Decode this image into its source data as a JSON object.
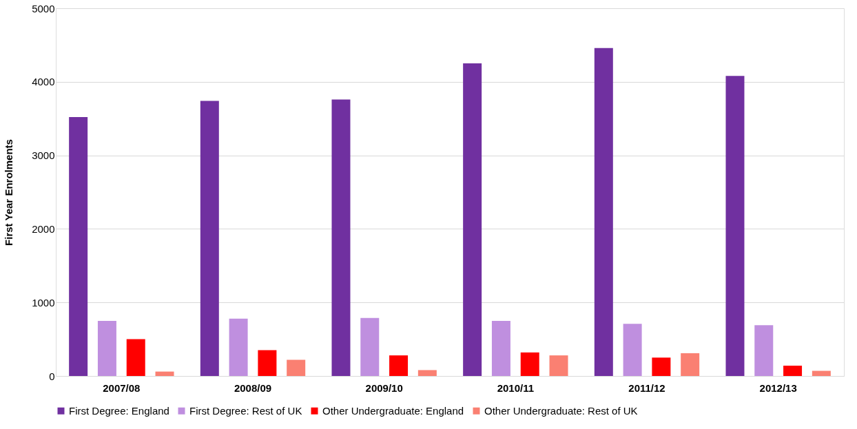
{
  "chart_data": {
    "type": "bar",
    "ylabel": "First Year Enrolments",
    "categories": [
      "2007/08",
      "2008/09",
      "2009/10",
      "2010/11",
      "2011/12",
      "2012/13"
    ],
    "series": [
      {
        "name": "First Degree: England",
        "color": "#7030a0",
        "values": [
          3520,
          3740,
          3760,
          4250,
          4460,
          4080
        ]
      },
      {
        "name": "First Degree: Rest of UK",
        "color": "#bf8fdf",
        "values": [
          750,
          780,
          790,
          750,
          710,
          690
        ]
      },
      {
        "name": "Other Undergraduate: England",
        "color": "#ff0000",
        "values": [
          500,
          350,
          280,
          320,
          250,
          140
        ]
      },
      {
        "name": "Other Undergraduate: Rest of UK",
        "color": "#fa8072",
        "values": [
          60,
          220,
          80,
          280,
          310,
          70
        ]
      }
    ],
    "ylim": [
      0,
      5000
    ],
    "yticks": [
      0,
      1000,
      2000,
      3000,
      4000,
      5000
    ],
    "grid": "y",
    "legend": "bottom"
  }
}
